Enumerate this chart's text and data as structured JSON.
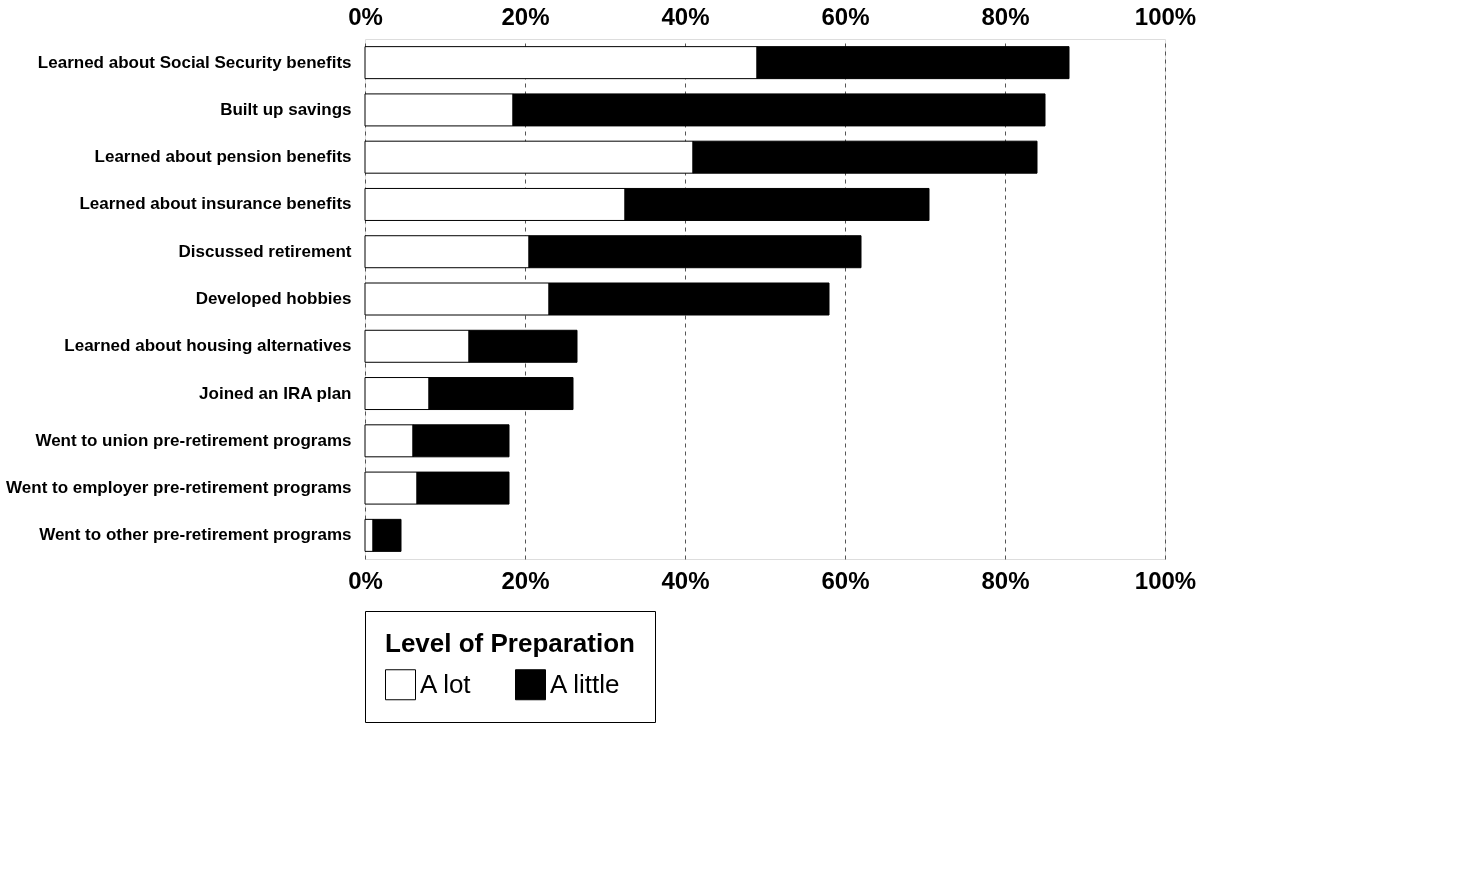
{
  "chart_data": {
    "type": "bar",
    "orientation": "horizontal",
    "stacked": true,
    "categories": [
      "Learned about Social Security benefits",
      "Built up savings",
      "Learned about pension benefits",
      "Learned about insurance benefits",
      "Discussed retirement",
      "Developed hobbies",
      "Learned about housing alternatives",
      "Joined an IRA plan",
      "Went to union pre-retirement programs",
      "Went to employer pre-retirement programs",
      "Went to other pre-retirement programs"
    ],
    "series": [
      {
        "name": "A lot",
        "color": "#ffffff",
        "values": [
          49,
          18.5,
          41,
          32.5,
          20.5,
          23,
          13,
          8,
          6,
          6.5,
          1
        ]
      },
      {
        "name": "A little",
        "color": "#000000",
        "values": [
          39,
          66.5,
          43,
          38,
          41.5,
          35,
          13.5,
          18,
          12,
          11.5,
          3.5
        ]
      }
    ],
    "xlim": [
      0,
      100
    ],
    "xticks": [
      {
        "value": 0,
        "label": "0%"
      },
      {
        "value": 20,
        "label": "20%"
      },
      {
        "value": 40,
        "label": "40%"
      },
      {
        "value": 60,
        "label": "60%"
      },
      {
        "value": 80,
        "label": "80%"
      },
      {
        "value": 100,
        "label": "100%"
      }
    ],
    "x2lim": [
      0,
      100
    ],
    "x2ticks": [
      {
        "value": 0,
        "label": "0%"
      },
      {
        "value": 20,
        "label": "20%"
      },
      {
        "value": 40,
        "label": "40%"
      },
      {
        "value": 60,
        "label": "60%"
      },
      {
        "value": 80,
        "label": "80%"
      },
      {
        "value": 100,
        "label": "100%"
      }
    ],
    "legend_title": "Level of Preparation",
    "legend": "bottom",
    "grid": "x"
  }
}
